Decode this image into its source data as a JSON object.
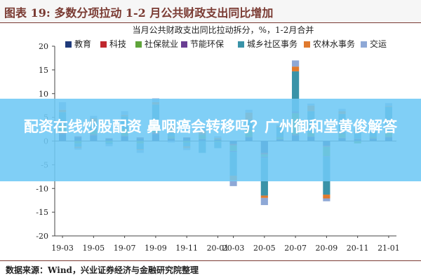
{
  "figure_title": "图表 19:  多数分项拉动 1-2 月公共财政支出同比增加",
  "source_note": "数据来源：Wind，兴业证券经济与金融研究院整理",
  "overlay_text": "配资在线炒股配资 鼻咽癌会转移吗？广州御和堂黄俊解答",
  "colors": {
    "banner": "#6ec8f5",
    "title": "#7a3a32"
  },
  "chart_data": {
    "type": "bar",
    "stacked": true,
    "title": "当月公共财政支出同比拉动拆分，%，1-2月合并",
    "ylim": [
      -20,
      20
    ],
    "yticks": [
      -20,
      -15,
      -10,
      -5,
      0,
      5,
      10,
      15,
      20
    ],
    "categories": [
      "19-03",
      "19-04",
      "19-05",
      "19-06",
      "19-07",
      "19-08",
      "19-09",
      "19-10",
      "19-11",
      "19-12",
      "20-01",
      "20-03",
      "20-04",
      "20-05",
      "20-06",
      "20-07",
      "20-08",
      "20-09",
      "20-10",
      "20-11",
      "20-12",
      "21-01"
    ],
    "xtick_labels": [
      "19-03",
      "19-05",
      "19-07",
      "19-09",
      "19-11",
      "20-01",
      "20-03",
      "20-05",
      "20-07",
      "20-09",
      "20-11",
      "21-01"
    ],
    "grid": false,
    "legend_position": "top",
    "series": [
      {
        "name": "教育",
        "color": "#1f3a7a",
        "values": [
          1.5,
          0.8,
          1.2,
          0.5,
          1.0,
          0.6,
          1.5,
          0.5,
          0.7,
          0.4,
          0.3,
          -0.6,
          0.8,
          -2.5,
          0.3,
          1.2,
          0.9,
          -1.0,
          0.6,
          0.4,
          0.5,
          0.8
        ]
      },
      {
        "name": "科技",
        "color": "#c0282e",
        "values": [
          0.2,
          0.1,
          0.2,
          0.1,
          0.1,
          0.1,
          0.3,
          0.1,
          0.1,
          0.1,
          0.0,
          -0.3,
          0.1,
          -0.3,
          0.1,
          0.2,
          0.1,
          -0.2,
          0.1,
          0.1,
          0.1,
          0.1
        ]
      },
      {
        "name": "社保就业",
        "color": "#5fa43a",
        "values": [
          1.8,
          -0.5,
          1.0,
          -0.3,
          1.5,
          -0.5,
          1.5,
          0.4,
          -0.3,
          0.8,
          -0.2,
          -1.2,
          1.5,
          -0.5,
          0.4,
          4.5,
          0.8,
          -2.0,
          0.9,
          -0.5,
          0.3,
          1.2
        ]
      },
      {
        "name": "节能环保",
        "color": "#6a3f93",
        "values": [
          0.1,
          0.1,
          0.1,
          0.0,
          0.1,
          0.1,
          0.2,
          0.1,
          0.0,
          0.1,
          0.0,
          -0.2,
          0.1,
          -0.2,
          0.1,
          0.3,
          0.0,
          -0.1,
          0.1,
          0.0,
          0.1,
          0.1
        ]
      },
      {
        "name": "城乡社区事务",
        "color": "#3a93a8",
        "values": [
          2.5,
          -0.7,
          1.5,
          -0.4,
          2.5,
          -1.2,
          4.2,
          0.6,
          -0.8,
          -2.5,
          -1.3,
          -5.0,
          2.0,
          -8.0,
          2.0,
          8.5,
          4.5,
          -8.0,
          4.0,
          1.5,
          1.0,
          5.0
        ]
      },
      {
        "name": "农林水事务",
        "color": "#e07a2e",
        "values": [
          0.5,
          -0.3,
          0.8,
          0.0,
          0.3,
          -0.2,
          0.5,
          1.5,
          -0.4,
          0.8,
          0.4,
          -1.0,
          1.5,
          -0.5,
          0.3,
          1.0,
          1.2,
          -0.8,
          0.6,
          0.2,
          0.0,
          0.2
        ]
      },
      {
        "name": "交运",
        "color": "#8ea8d6",
        "values": [
          1.6,
          -0.3,
          0.5,
          -0.4,
          0.8,
          -0.6,
          0.8,
          -0.3,
          -0.4,
          0.5,
          0.3,
          -1.2,
          0.6,
          -1.5,
          0.3,
          1.3,
          0.4,
          -0.6,
          0.5,
          0.5,
          0.3,
          0.6
        ]
      }
    ]
  }
}
